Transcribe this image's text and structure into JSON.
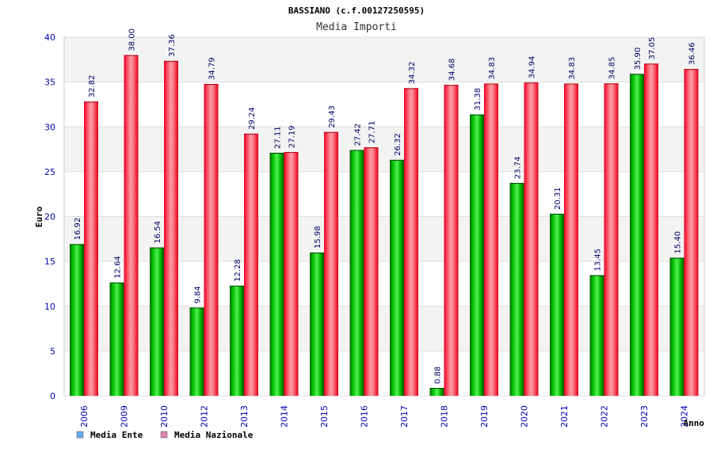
{
  "chart_data": {
    "type": "bar",
    "title": "BASSIANO (c.f.00127250595)",
    "subtitle": "Media Importi",
    "xlabel": "Anno",
    "ylabel": "Euro",
    "ylim": [
      0,
      40
    ],
    "yticks": [
      0,
      5,
      10,
      15,
      20,
      25,
      30,
      35,
      40
    ],
    "grid": true,
    "legend_position": "bottom-left",
    "categories": [
      "2006",
      "2009",
      "2010",
      "2012",
      "2013",
      "2014",
      "2015",
      "2016",
      "2017",
      "2018",
      "2019",
      "2020",
      "2021",
      "2022",
      "2023",
      "2024"
    ],
    "series": [
      {
        "name": "Media Ente",
        "color": "#00aa00",
        "legend_color": "#66aaee",
        "values": [
          16.92,
          12.64,
          16.54,
          9.84,
          12.28,
          27.11,
          15.98,
          27.42,
          26.32,
          0.88,
          31.38,
          23.74,
          20.31,
          13.45,
          35.9,
          15.4
        ],
        "labels": [
          "16.92",
          "12.64",
          "16.54",
          "9.84",
          "12.28",
          "27.11",
          "15.98",
          "27.42",
          "26.32",
          "0.88",
          "31.38",
          "23.74",
          "20.31",
          "13.45",
          "35.90",
          "15.40"
        ]
      },
      {
        "name": "Media Nazionale",
        "color": "#ee1122",
        "legend_color": "#dd88aa",
        "values": [
          32.82,
          38.0,
          37.36,
          34.79,
          29.24,
          27.19,
          29.43,
          27.71,
          34.32,
          34.68,
          34.83,
          34.94,
          34.83,
          34.85,
          37.05,
          36.46
        ],
        "labels": [
          "32.82",
          "38.00",
          "37.36",
          "34.79",
          "29.24",
          "27.19",
          "29.43",
          "27.71",
          "34.32",
          "34.68",
          "34.83",
          "34.94",
          "34.83",
          "34.85",
          "37.05",
          "36.46"
        ]
      }
    ]
  }
}
